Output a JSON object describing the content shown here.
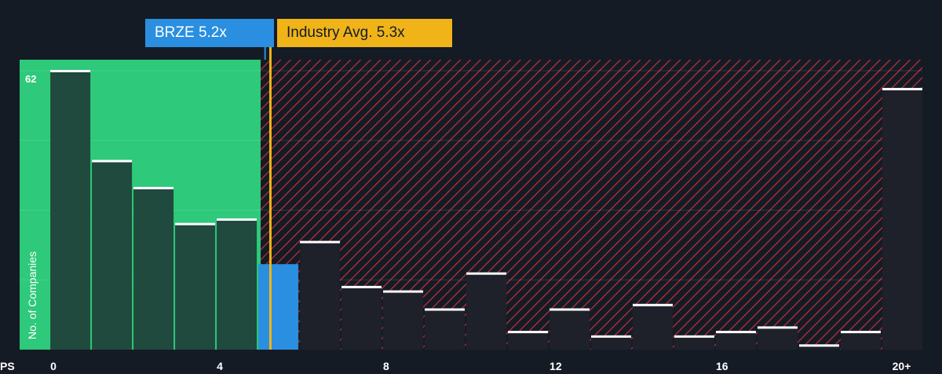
{
  "colors": {
    "background": "#151b24",
    "fair_zone": "#2ec97a",
    "company": "#2a8fe0",
    "industry": "#f0b419",
    "overvalued_hatch": "#c0313c",
    "bar_fill": "#1f4a3d",
    "bar_fill_red": "#1e2129",
    "bar_top": "#ffffff"
  },
  "callouts": {
    "company_label": "BRZE 5.2x",
    "industry_label": "Industry Avg. 5.3x"
  },
  "chart_data": {
    "type": "bar",
    "xlabel": "PS",
    "ylabel": "No. of Companies",
    "x_ticks": [
      "0",
      "4",
      "8",
      "12",
      "16",
      "20+"
    ],
    "x_tick_values": [
      0,
      4,
      8,
      12,
      16,
      20
    ],
    "y_max_label": "62",
    "ylim": [
      0,
      62
    ],
    "xlim": [
      -0.7,
      21
    ],
    "bin_width": 1,
    "bins": [
      0,
      1,
      2,
      3,
      4,
      5,
      6,
      7,
      8,
      9,
      10,
      11,
      12,
      13,
      14,
      15,
      16,
      17,
      18,
      19,
      20
    ],
    "values": [
      62,
      42,
      36,
      28,
      29,
      19,
      24,
      14,
      13,
      9,
      17,
      4,
      9,
      3,
      10,
      3,
      4,
      5,
      1,
      4,
      58
    ],
    "company_value": 5.2,
    "industry_avg": 5.3,
    "highlight_bin": 5,
    "gridlines": [
      15.5,
      31,
      46.5,
      62
    ],
    "grid": true
  }
}
